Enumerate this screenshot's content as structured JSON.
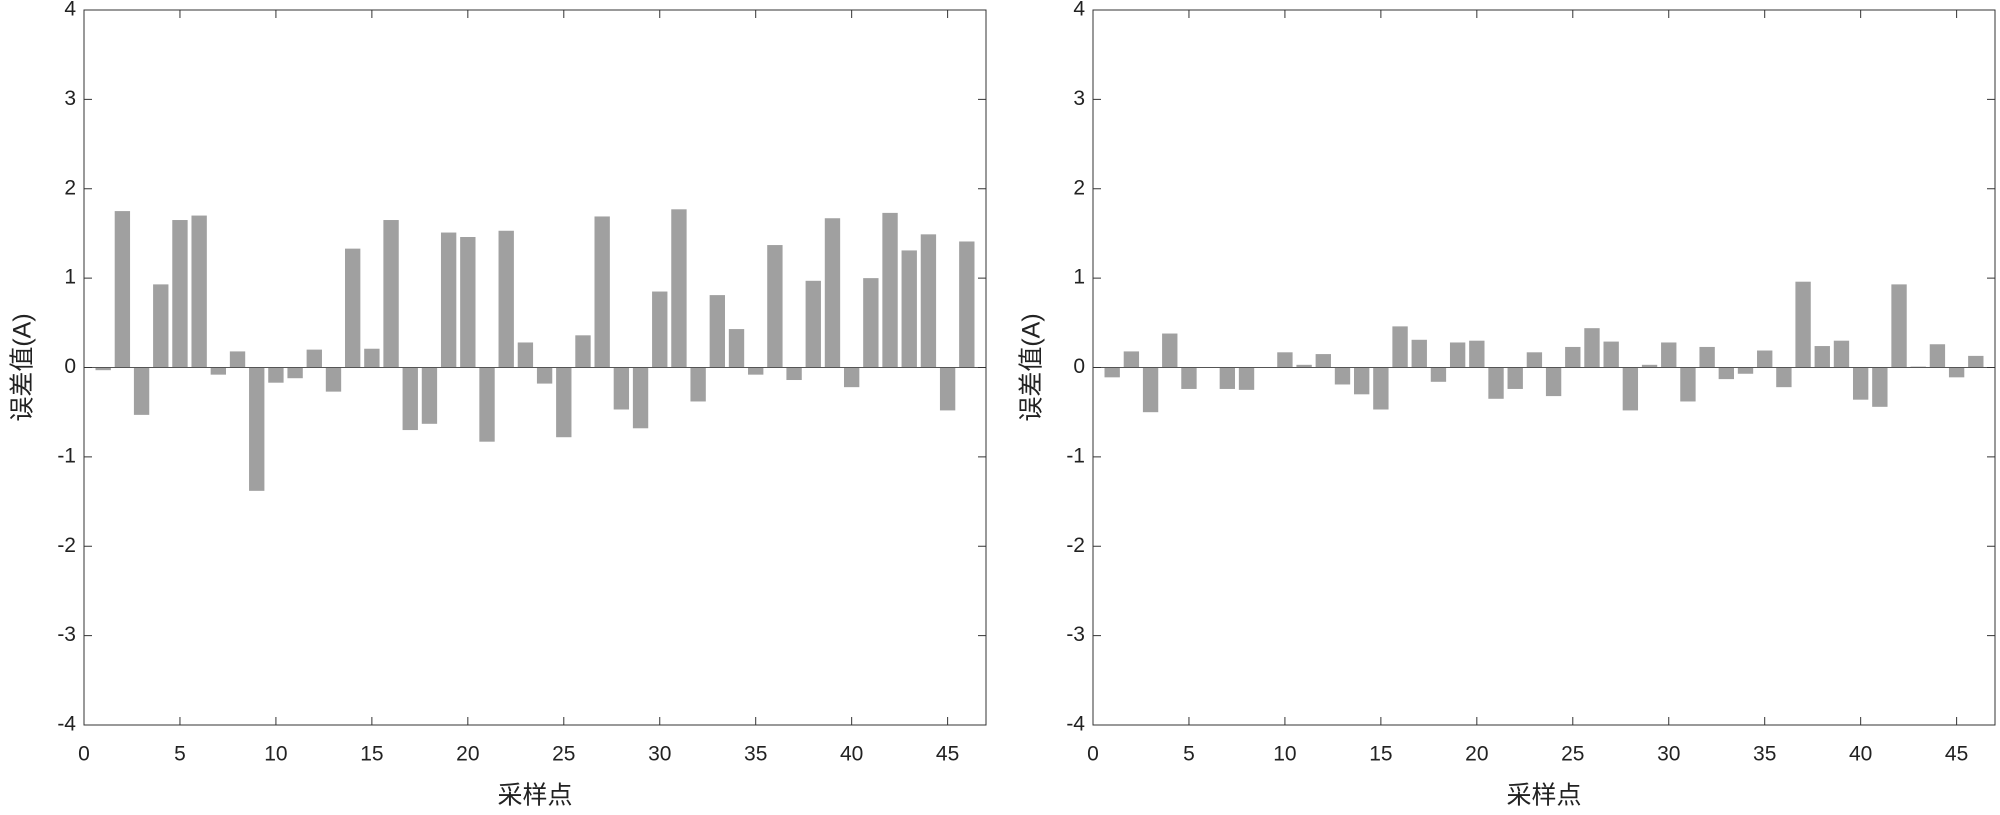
{
  "chart_data": [
    {
      "type": "bar",
      "xlabel": "采样点",
      "ylabel": "误差值(A)",
      "color": "#a0a0a0",
      "x": [
        1,
        2,
        3,
        4,
        5,
        6,
        7,
        8,
        9,
        10,
        11,
        12,
        13,
        14,
        15,
        16,
        17,
        18,
        19,
        20,
        21,
        22,
        23,
        24,
        25,
        26,
        27,
        28,
        29,
        30,
        31,
        32,
        33,
        34,
        35,
        36,
        37,
        38,
        39,
        40,
        41,
        42,
        43,
        44,
        45,
        46
      ],
      "values": [
        -0.03,
        1.75,
        -0.53,
        0.93,
        1.65,
        1.7,
        -0.08,
        0.18,
        -1.38,
        -0.17,
        -0.12,
        0.2,
        -0.27,
        1.33,
        0.21,
        1.65,
        -0.7,
        -0.63,
        1.51,
        1.46,
        -0.83,
        1.53,
        0.28,
        -0.18,
        -0.78,
        0.36,
        1.69,
        -0.47,
        -0.68,
        0.85,
        1.77,
        -0.38,
        0.81,
        0.43,
        -0.08,
        1.37,
        -0.14,
        0.97,
        1.67,
        -0.22,
        1.0,
        1.73,
        1.31,
        1.49,
        -0.48,
        1.41
      ],
      "xlim": [
        0,
        47
      ],
      "xticks": [
        0,
        5,
        10,
        15,
        20,
        25,
        30,
        35,
        40,
        45
      ],
      "ylim": [
        -4,
        4
      ],
      "yticks": [
        -4,
        -3,
        -2,
        -1,
        0,
        1,
        2,
        3,
        4
      ]
    },
    {
      "type": "bar",
      "xlabel": "采样点",
      "ylabel": "误差值(A)",
      "color": "#a0a0a0",
      "x": [
        1,
        2,
        3,
        4,
        5,
        6,
        7,
        8,
        9,
        10,
        11,
        12,
        13,
        14,
        15,
        16,
        17,
        18,
        19,
        20,
        21,
        22,
        23,
        24,
        25,
        26,
        27,
        28,
        29,
        30,
        31,
        32,
        33,
        34,
        35,
        36,
        37,
        38,
        39,
        40,
        41,
        42,
        43,
        44,
        45,
        46
      ],
      "values": [
        -0.11,
        0.18,
        -0.5,
        0.38,
        -0.24,
        0,
        -0.24,
        -0.25,
        0,
        0.17,
        0.03,
        0.15,
        -0.19,
        -0.3,
        -0.47,
        0.46,
        0.31,
        -0.16,
        0.28,
        0.3,
        -0.35,
        -0.24,
        0.17,
        -0.32,
        0.23,
        0.44,
        0.29,
        -0.48,
        0.03,
        0.28,
        -0.38,
        0.23,
        -0.13,
        -0.07,
        0.19,
        -0.22,
        0.96,
        0.24,
        0.3,
        -0.36,
        -0.44,
        0.93,
        0.01,
        0.26,
        -0.11,
        0.13
      ],
      "xlim": [
        0,
        47
      ],
      "xticks": [
        0,
        5,
        10,
        15,
        20,
        25,
        30,
        35,
        40,
        45
      ],
      "ylim": [
        -4,
        4
      ],
      "yticks": [
        -4,
        -3,
        -2,
        -1,
        0,
        1,
        2,
        3,
        4
      ]
    }
  ]
}
